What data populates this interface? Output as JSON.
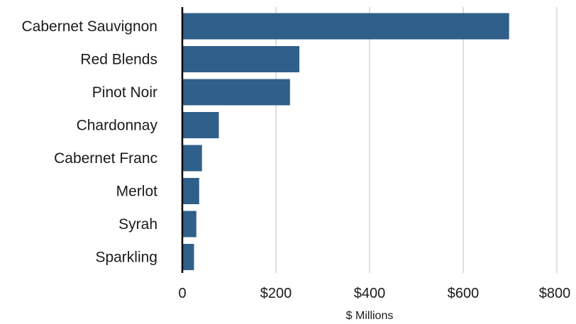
{
  "chart_data": {
    "type": "bar",
    "orientation": "horizontal",
    "categories": [
      "Cabernet Sauvignon",
      "Red Blends",
      "Pinot Noir",
      "Chardonnay",
      "Cabernet Franc",
      "Merlot",
      "Syrah",
      "Sparkling"
    ],
    "values": [
      698,
      250,
      230,
      78,
      42,
      36,
      30,
      25
    ],
    "xlabel": "$ Millions",
    "ylabel": "",
    "xlim": [
      0,
      800
    ],
    "x_ticks": [
      0,
      200,
      400,
      600,
      800
    ],
    "x_tick_labels": [
      "0",
      "$200",
      "$400",
      "$600",
      "$800"
    ],
    "grid": "vertical",
    "bar_color": "#2f5f8a",
    "grid_color": "#d4d4d4"
  }
}
